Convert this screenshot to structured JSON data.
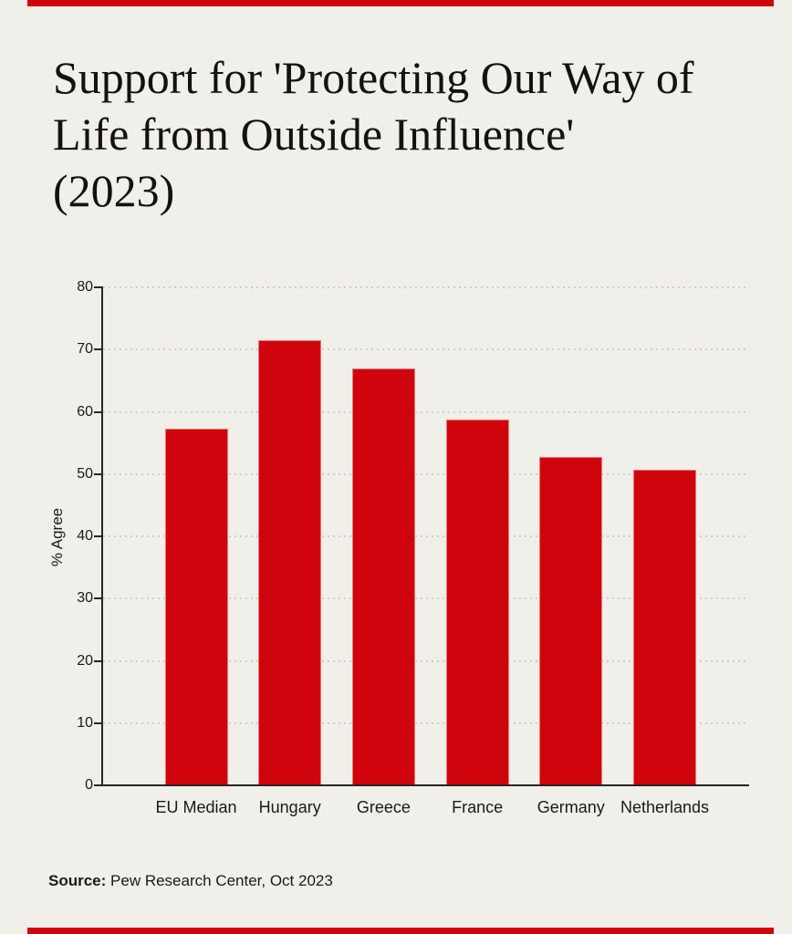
{
  "page": {
    "background_color": "#f0efe9",
    "accent_color": "#d0040c",
    "axis_color": "#262626",
    "grid_color": "#cfcdc5",
    "text_color": "#1a1a1a"
  },
  "title": {
    "lines": [
      "Support for 'Protecting Our Way of",
      "Life from Outside Influence'",
      "(2023)"
    ]
  },
  "chart_data": {
    "type": "bar",
    "title": "Support for 'Protecting Our Way of Life from Outside Influence' (2023)",
    "categories": [
      "EU Median",
      "Hungary",
      "Greece",
      "France",
      "Germany",
      "Netherlands"
    ],
    "values": [
      57.3,
      71.5,
      67,
      58.7,
      52.7,
      50.7
    ],
    "xlabel": "",
    "ylabel": "% Agree",
    "ylim": [
      0,
      80
    ],
    "yticks": [
      0,
      10,
      20,
      30,
      40,
      50,
      60,
      70,
      80
    ],
    "bar_color": "#d0040c",
    "grid": "horizontal-dotted",
    "legend": "none"
  },
  "source": {
    "label": "Source:",
    "text": " Pew Research Center, Oct 2023"
  }
}
